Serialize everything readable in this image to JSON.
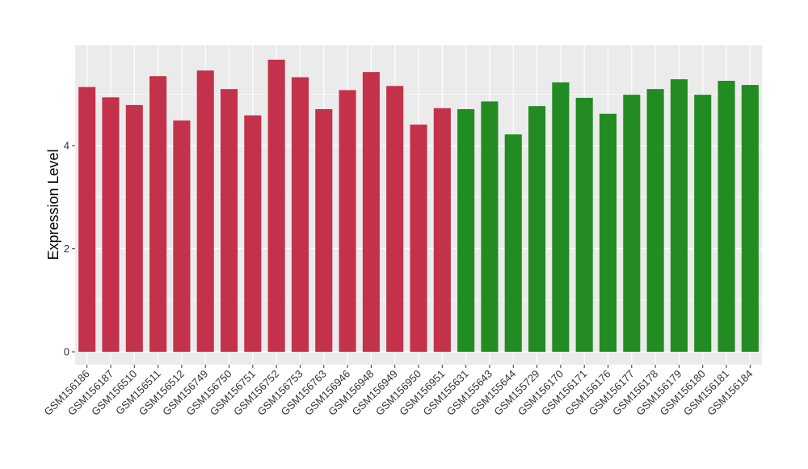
{
  "chart_data": {
    "type": "bar",
    "title": "",
    "xlabel": "",
    "ylabel": "Expression Level",
    "ylim": [
      -0.25,
      5.95
    ],
    "yticks": [
      0,
      2,
      4
    ],
    "grid": true,
    "legend": "none",
    "colors": {
      "group1": "#C4314B",
      "group2": "#228B22",
      "panel": "#EBEBEB",
      "gridline": "#FFFFFF"
    },
    "categories": [
      "GSM156186",
      "GSM156187",
      "GSM156510",
      "GSM156511",
      "GSM156512",
      "GSM156749",
      "GSM156750",
      "GSM156751",
      "GSM156752",
      "GSM156753",
      "GSM156763",
      "GSM156946",
      "GSM156948",
      "GSM156949",
      "GSM156950",
      "GSM156951",
      "GSM155631",
      "GSM155643",
      "GSM155644",
      "GSM155729",
      "GSM156170",
      "GSM156171",
      "GSM156176",
      "GSM156177",
      "GSM156178",
      "GSM156179",
      "GSM156180",
      "GSM156181",
      "GSM156184"
    ],
    "values": [
      5.14,
      4.94,
      4.79,
      5.35,
      4.49,
      5.46,
      5.1,
      4.59,
      5.67,
      5.33,
      4.71,
      5.08,
      5.43,
      5.16,
      4.41,
      4.73,
      4.71,
      4.86,
      4.22,
      4.77,
      5.23,
      4.93,
      4.62,
      4.99,
      5.1,
      5.29,
      4.99,
      5.26,
      5.18
    ],
    "group_sizes": [
      16,
      13
    ]
  }
}
